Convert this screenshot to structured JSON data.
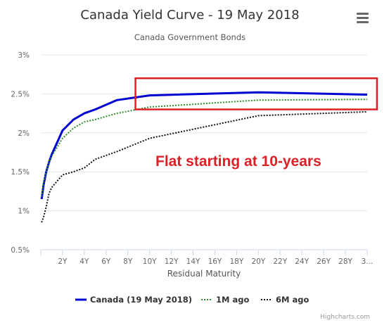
{
  "chart_data": {
    "type": "line",
    "title": "Canada Yield Curve - 19 May 2018",
    "subtitle": "Canada Government Bonds",
    "xlabel": "Residual Maturity",
    "ylabel": "",
    "xlim": [
      0,
      30
    ],
    "ylim": [
      0.5,
      3
    ],
    "x_ticks": [
      {
        "v": 2,
        "label": "2Y"
      },
      {
        "v": 4,
        "label": "4Y"
      },
      {
        "v": 6,
        "label": "6Y"
      },
      {
        "v": 8,
        "label": "8Y"
      },
      {
        "v": 10,
        "label": "10Y"
      },
      {
        "v": 12,
        "label": "12Y"
      },
      {
        "v": 14,
        "label": "14Y"
      },
      {
        "v": 16,
        "label": "16Y"
      },
      {
        "v": 18,
        "label": "18Y"
      },
      {
        "v": 20,
        "label": "20Y"
      },
      {
        "v": 22,
        "label": "22Y"
      },
      {
        "v": 24,
        "label": "24Y"
      },
      {
        "v": 26,
        "label": "26Y"
      },
      {
        "v": 28,
        "label": "28Y"
      },
      {
        "v": 30,
        "label": "3..."
      }
    ],
    "y_ticks": [
      {
        "v": 0.5,
        "label": "0.5%"
      },
      {
        "v": 1,
        "label": "1%"
      },
      {
        "v": 1.5,
        "label": "1.5%"
      },
      {
        "v": 2,
        "label": "2%"
      },
      {
        "v": 2.5,
        "label": "2.5%"
      },
      {
        "v": 3,
        "label": "3%"
      }
    ],
    "grid": true,
    "legend_position": "bottom",
    "series": [
      {
        "name": "Canada (19 May 2018)",
        "color": "#0000d0",
        "style": "solid",
        "points": [
          [
            0.08,
            1.15
          ],
          [
            0.25,
            1.33
          ],
          [
            0.5,
            1.5
          ],
          [
            0.75,
            1.62
          ],
          [
            1,
            1.72
          ],
          [
            2,
            2.03
          ],
          [
            3,
            2.17
          ],
          [
            4,
            2.25
          ],
          [
            5,
            2.3
          ],
          [
            7,
            2.42
          ],
          [
            10,
            2.48
          ],
          [
            20,
            2.52
          ],
          [
            30,
            2.49
          ]
        ]
      },
      {
        "name": "1M ago",
        "color": "#2e8b2e",
        "style": "dotted",
        "points": [
          [
            0.08,
            1.18
          ],
          [
            0.25,
            1.36
          ],
          [
            0.5,
            1.5
          ],
          [
            0.75,
            1.62
          ],
          [
            1,
            1.7
          ],
          [
            2,
            1.93
          ],
          [
            3,
            2.06
          ],
          [
            4,
            2.14
          ],
          [
            5,
            2.17
          ],
          [
            7,
            2.25
          ],
          [
            10,
            2.33
          ],
          [
            20,
            2.42
          ],
          [
            30,
            2.43
          ]
        ]
      },
      {
        "name": "6M ago",
        "color": "#111111",
        "style": "dotted",
        "points": [
          [
            0.08,
            0.85
          ],
          [
            0.25,
            0.92
          ],
          [
            0.5,
            1.05
          ],
          [
            0.75,
            1.22
          ],
          [
            1,
            1.3
          ],
          [
            2,
            1.46
          ],
          [
            3,
            1.5
          ],
          [
            4,
            1.55
          ],
          [
            5,
            1.66
          ],
          [
            7,
            1.76
          ],
          [
            10,
            1.93
          ],
          [
            20,
            2.22
          ],
          [
            30,
            2.27
          ]
        ]
      }
    ],
    "annotation": {
      "text": "Flat starting at 10-years",
      "box_color": "#dd1f26",
      "box_x_range": [
        8.7,
        30.9
      ],
      "box_y_range": [
        2.3,
        2.7
      ]
    },
    "credits": "Highcharts.com"
  }
}
